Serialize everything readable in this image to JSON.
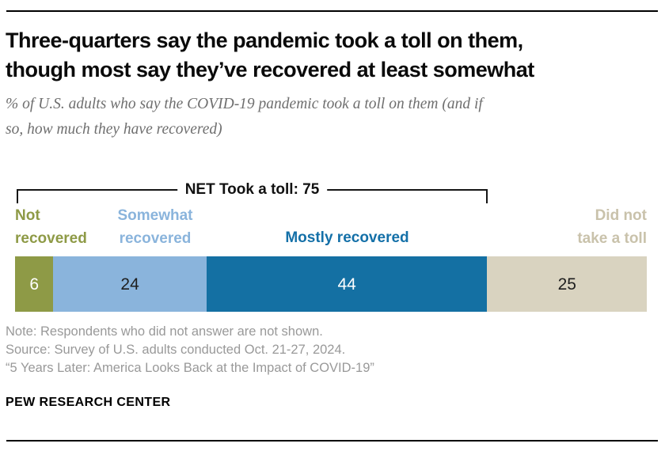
{
  "header": {
    "title_line1": "Three-quarters say the pandemic took a toll on them,",
    "title_line2": "though most say they’ve recovered at least somewhat",
    "subtitle_line1": "% of U.S. adults who say the COVID-19 pandemic took a toll on them (and if",
    "subtitle_line2": "so, how much they have recovered)"
  },
  "chart_data": {
    "type": "bar",
    "subtype": "horizontal-stacked-single-bar",
    "title": "Three-quarters say the pandemic took a toll on them, though most say they’ve recovered at least somewhat",
    "subtitle": "% of U.S. adults who say the COVID-19 pandemic took a toll on them (and if so, how much they have recovered)",
    "unit": "%",
    "categories": [
      "Not recovered",
      "Somewhat recovered",
      "Mostly recovered",
      "Did not take a toll"
    ],
    "values": [
      6,
      24,
      44,
      25
    ],
    "colors": [
      "#8e9a46",
      "#8ab4dc",
      "#1470a3",
      "#d9d3c0"
    ],
    "value_label_colors": [
      "#ffffff",
      "#1f1f1f",
      "#ffffff",
      "#1f1f1f"
    ],
    "category_label_colors": [
      "#8e9a46",
      "#8ab4dc",
      "#1470a8",
      "#c9c2ab"
    ],
    "net": {
      "label": "NET Took a toll: 75",
      "value": 75,
      "covers": [
        "Not recovered",
        "Somewhat recovered",
        "Mostly recovered"
      ]
    },
    "legend_position": "labels-above-segments",
    "grid": false
  },
  "footer": {
    "note": "Note: Respondents who did not answer are not shown.",
    "source": "Source: Survey of U.S. adults conducted Oct. 21-27, 2024.",
    "quote": "“5 Years Later: America Looks Back at the Impact of COVID-19”",
    "brand": "PEW RESEARCH CENTER"
  }
}
